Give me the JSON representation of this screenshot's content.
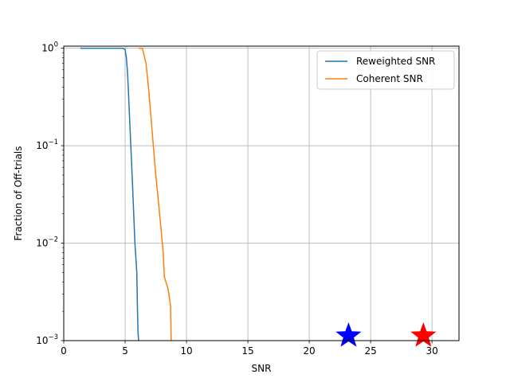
{
  "chart_data": {
    "type": "line",
    "title": "",
    "xlabel": "SNR",
    "ylabel": "Fraction of Off-trials",
    "xlim": [
      0,
      32.2
    ],
    "ylim": [
      0.001,
      1.05
    ],
    "yscale": "log",
    "grid": true,
    "legend_position": "top-right",
    "x_ticks": [
      0,
      5,
      10,
      15,
      20,
      25,
      30
    ],
    "x_tick_labels": [
      "0",
      "5",
      "10",
      "15",
      "20",
      "25",
      "30"
    ],
    "y_ticks": [
      {
        "value": 1,
        "base": "10",
        "exp": "0"
      },
      {
        "value": 0.1,
        "base": "10",
        "exp": "−1"
      },
      {
        "value": 0.01,
        "base": "10",
        "exp": "−2"
      },
      {
        "value": 0.001,
        "base": "10",
        "exp": "−3"
      }
    ],
    "series": [
      {
        "name": "Reweighted SNR",
        "color": "#1f77b4",
        "x": [
          1.35,
          4.8,
          5.0,
          5.1,
          5.2,
          5.3,
          5.4,
          5.5,
          5.6,
          5.7,
          5.8,
          5.95,
          6.0,
          6.05,
          6.1
        ],
        "y": [
          1.0,
          1.0,
          0.97,
          0.8,
          0.55,
          0.3,
          0.15,
          0.08,
          0.04,
          0.02,
          0.01,
          0.005,
          0.0023,
          0.0012,
          0.001
        ]
      },
      {
        "name": "Coherent SNR",
        "color": "#ff7f0e",
        "x": [
          6.1,
          6.4,
          6.7,
          6.9,
          7.1,
          7.3,
          7.5,
          7.7,
          7.9,
          8.1,
          8.2,
          8.5,
          8.7,
          8.75
        ],
        "y": [
          1.0,
          1.0,
          0.7,
          0.4,
          0.2,
          0.1,
          0.05,
          0.028,
          0.015,
          0.008,
          0.0045,
          0.0034,
          0.0023,
          0.001
        ]
      }
    ],
    "markers": [
      {
        "name": "blue-star",
        "x": 23.2,
        "y": 0.00112,
        "color": "#0000ff"
      },
      {
        "name": "red-star",
        "x": 29.3,
        "y": 0.00112,
        "color": "#ff0000"
      }
    ]
  }
}
